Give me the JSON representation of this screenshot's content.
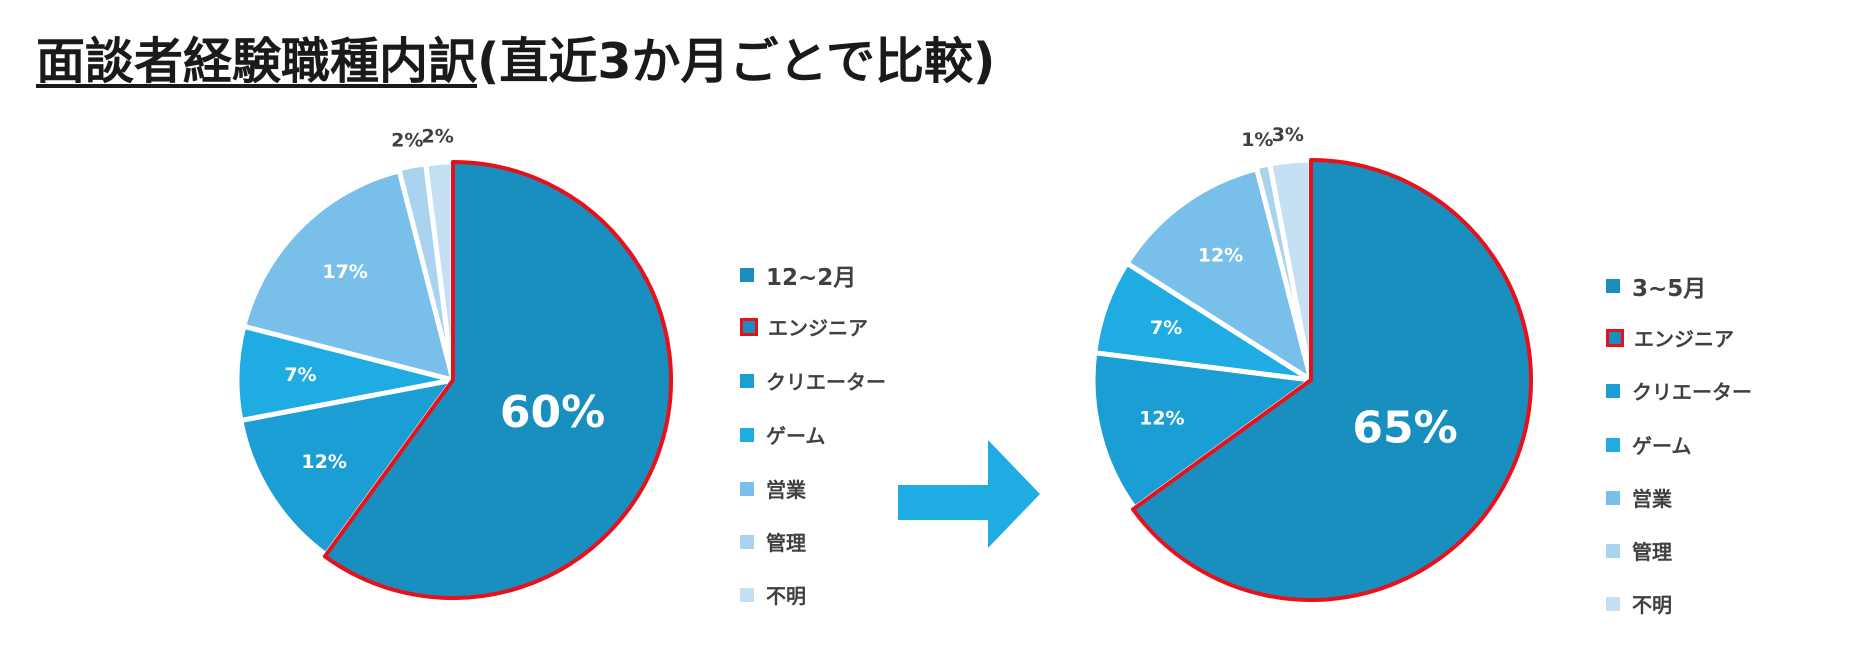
{
  "title": {
    "underlined": "面談者経験職種内訳",
    "rest": "(直近3か月ごとで比較)"
  },
  "colors": {
    "engineer": "#188fbe",
    "creator": "#1b9ed3",
    "game": "#1eace3",
    "sales": "#78bfe9",
    "management": "#a9d3ef",
    "unknown": "#c5e0f3",
    "highlight": "#e8101a",
    "arrow": "#1eace3"
  },
  "categories": [
    "エンジニア",
    "クリエーター",
    "ゲーム",
    "営業",
    "管理",
    "不明"
  ],
  "category_colors": [
    "#188fbe",
    "#1b9ed3",
    "#1eace3",
    "#78bfe9",
    "#a9d3ef",
    "#c5e0f3"
  ],
  "highlighted_category": "エンジニア",
  "chart_data": [
    {
      "type": "pie",
      "title": "12~2月",
      "labels": [
        "エンジニア",
        "クリエーター",
        "ゲーム",
        "営業",
        "管理",
        "不明"
      ],
      "values": [
        60,
        12,
        7,
        17,
        2,
        2
      ],
      "data_labels": [
        "60%",
        "12%",
        "7%",
        "17%",
        "2%",
        "2%"
      ],
      "legend": "right"
    },
    {
      "type": "pie",
      "title": "3~5月",
      "labels": [
        "エンジニア",
        "クリエーター",
        "ゲーム",
        "営業",
        "管理",
        "不明"
      ],
      "values": [
        65,
        12,
        7,
        12,
        1,
        3
      ],
      "data_labels": [
        "65%",
        "12%",
        "7%",
        "12%",
        "1%",
        "3%"
      ],
      "legend": "right"
    }
  ]
}
